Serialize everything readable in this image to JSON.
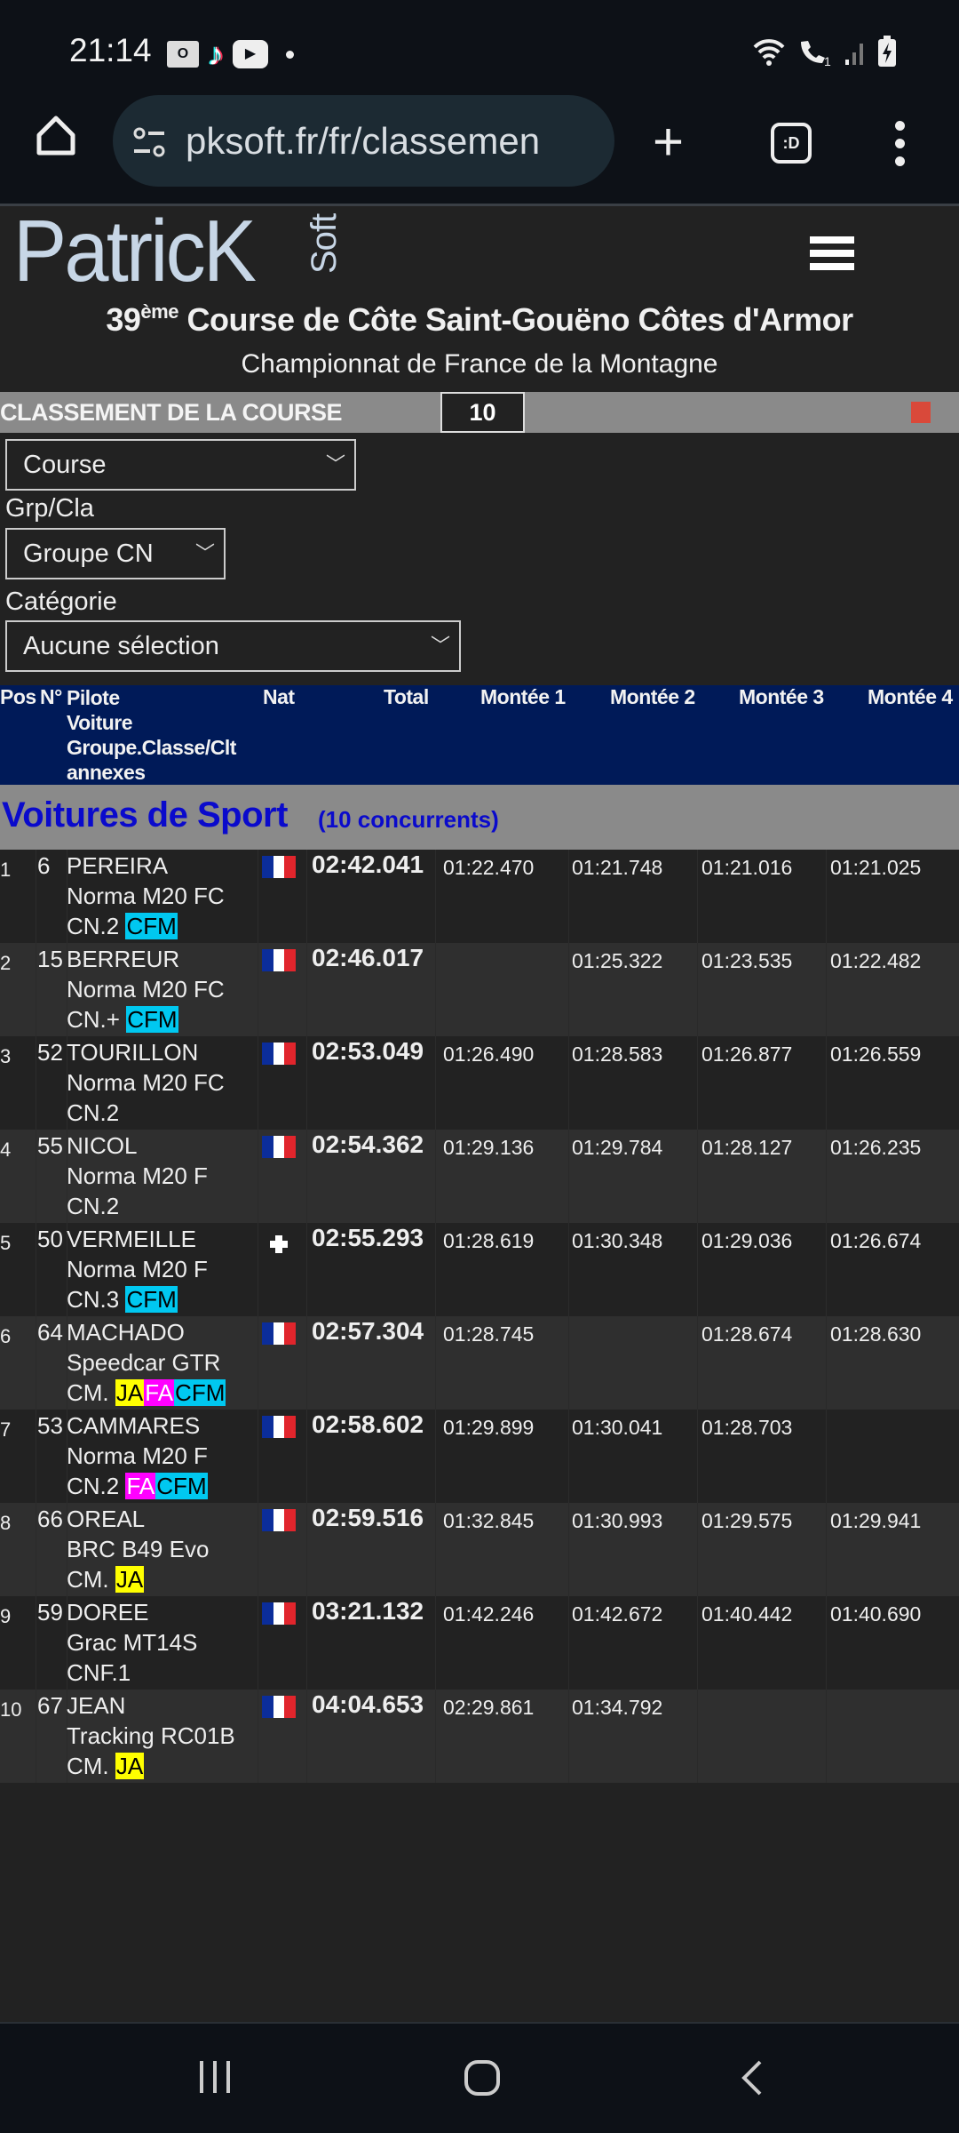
{
  "status_bar": {
    "time": "21:14",
    "notification_icons": [
      "outlook-icon",
      "tiktok-icon",
      "youtube-icon",
      "dot-icon"
    ],
    "system_icons": [
      "wifi-icon",
      "wifi-calling-icon",
      "signal-icon",
      "battery-charging-icon"
    ]
  },
  "browser": {
    "url": "pksoft.fr/fr/classemen",
    "tabs_label": ":D"
  },
  "site": {
    "logo_main": "PatricK",
    "logo_side": "Soft",
    "title_prefix": "39",
    "title_sup": "ème",
    "title_rest": " Course de Côte Saint-Gouëno Côtes d'Armor",
    "subtitle": "Championnat de France de la Montagne"
  },
  "ranking_bar": {
    "label": "CLASSEMENT DE LA COURSE",
    "count": "10",
    "status_color": "#d9493a"
  },
  "filters": {
    "course": "Course",
    "grp_label": "Grp/Cla",
    "grp_value": "Groupe CN",
    "cat_label": "Catégorie",
    "cat_value": "Aucune sélection"
  },
  "table_header": {
    "pos": "Pos",
    "num": "N°",
    "pilote": "Pilote",
    "voiture": "Voiture",
    "groupe": "Groupe.Classe/Clt",
    "annexes": "annexes",
    "nat": "Nat",
    "total": "Total",
    "m1": "Montée 1",
    "m2": "Montée 2",
    "m3": "Montée 3",
    "m4": "Montée 4"
  },
  "section": {
    "title": "Voitures de Sport",
    "count": "(10 concurrents)"
  },
  "badge_colors": {
    "CFM": "#00c8f0",
    "JA": "#ffff00",
    "FA": "#ff00ff"
  },
  "rows": [
    {
      "pos": "1",
      "num": "6",
      "pilote": "PEREIRA",
      "voiture": "Norma M20 FC",
      "groupe": "CN.2",
      "badges": [
        "CFM"
      ],
      "nat": "FR",
      "total": "02:42.041",
      "m": [
        "01:22.470",
        "01:21.748",
        "01:21.016",
        "01:21.025"
      ]
    },
    {
      "pos": "2",
      "num": "15",
      "pilote": "BERREUR",
      "voiture": "Norma M20 FC",
      "groupe": "CN.+",
      "badges": [
        "CFM"
      ],
      "nat": "FR",
      "total": "02:46.017",
      "m": [
        "",
        "01:25.322",
        "01:23.535",
        "01:22.482"
      ]
    },
    {
      "pos": "3",
      "num": "52",
      "pilote": "TOURILLON",
      "voiture": "Norma M20 FC",
      "groupe": "CN.2",
      "badges": [],
      "nat": "FR",
      "total": "02:53.049",
      "m": [
        "01:26.490",
        "01:28.583",
        "01:26.877",
        "01:26.559"
      ]
    },
    {
      "pos": "4",
      "num": "55",
      "pilote": "NICOL",
      "voiture": "Norma M20 F",
      "groupe": "CN.2",
      "badges": [],
      "nat": "FR",
      "total": "02:54.362",
      "m": [
        "01:29.136",
        "01:29.784",
        "01:28.127",
        "01:26.235"
      ]
    },
    {
      "pos": "5",
      "num": "50",
      "pilote": "VERMEILLE",
      "voiture": "Norma M20 F",
      "groupe": "CN.3",
      "badges": [
        "CFM"
      ],
      "nat": "CH",
      "total": "02:55.293",
      "m": [
        "01:28.619",
        "01:30.348",
        "01:29.036",
        "01:26.674"
      ]
    },
    {
      "pos": "6",
      "num": "64",
      "pilote": "MACHADO",
      "voiture": "Speedcar GTR",
      "groupe": "CM.",
      "badges": [
        "JA",
        "FA",
        "CFM"
      ],
      "nat": "FR",
      "total": "02:57.304",
      "m": [
        "01:28.745",
        "",
        "01:28.674",
        "01:28.630"
      ]
    },
    {
      "pos": "7",
      "num": "53",
      "pilote": "CAMMARES",
      "voiture": "Norma M20 F",
      "groupe": "CN.2",
      "badges": [
        "FA",
        "CFM"
      ],
      "nat": "FR",
      "total": "02:58.602",
      "m": [
        "01:29.899",
        "01:30.041",
        "01:28.703",
        ""
      ]
    },
    {
      "pos": "8",
      "num": "66",
      "pilote": "OREAL",
      "voiture": "BRC B49 Evo",
      "groupe": "CM.",
      "badges": [
        "JA"
      ],
      "nat": "FR",
      "total": "02:59.516",
      "m": [
        "01:32.845",
        "01:30.993",
        "01:29.575",
        "01:29.941"
      ]
    },
    {
      "pos": "9",
      "num": "59",
      "pilote": "DOREE",
      "voiture": "Grac MT14S",
      "groupe": "CNF.1",
      "badges": [],
      "nat": "FR",
      "total": "03:21.132",
      "m": [
        "01:42.246",
        "01:42.672",
        "01:40.442",
        "01:40.690"
      ]
    },
    {
      "pos": "10",
      "num": "67",
      "pilote": "JEAN",
      "voiture": "Tracking RC01B",
      "groupe": "CM.",
      "badges": [
        "JA"
      ],
      "nat": "FR",
      "total": "04:04.653",
      "m": [
        "02:29.861",
        "01:34.792",
        "",
        ""
      ]
    }
  ]
}
